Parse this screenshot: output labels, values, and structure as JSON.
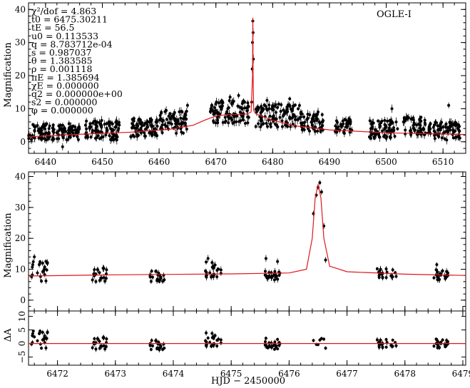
{
  "chart_data": [
    {
      "type": "scatter",
      "panel": "top",
      "title": "OGLE-I",
      "xlabel": "",
      "ylabel": "Magnification",
      "xlim": [
        6437,
        6514
      ],
      "ylim": [
        -3.5,
        42
      ],
      "xticks": [
        6440,
        6450,
        6460,
        6470,
        6480,
        6490,
        6500,
        6510
      ],
      "yticks": [
        0,
        10,
        20,
        30,
        40
      ],
      "grid": false,
      "params": [
        "χ²/dof = 4.863",
        "t0 = 6475.30211",
        "tE = 56.5",
        "u0 = 0.113533",
        "q = 8.783712e-04",
        "s = 0.987037",
        "θ = 1.383585",
        "ρ = 0.001118",
        "πE = 1.385694",
        "χE = 0.000000",
        "q2 = 0.000000e+00",
        "s2 = 0.000000",
        "φ = 0.000000"
      ],
      "model": {
        "name": "model",
        "x": [
          6437,
          6445,
          6455,
          6462,
          6466,
          6468,
          6470,
          6472,
          6474,
          6475.5,
          6476.2,
          6476.45,
          6476.5,
          6476.55,
          6476.65,
          6477,
          6478,
          6480,
          6484,
          6490,
          6500,
          6514
        ],
        "y": [
          1.5,
          2.2,
          2.9,
          3.8,
          5.0,
          6.5,
          7.8,
          8.2,
          8.3,
          8.4,
          9.0,
          20,
          37.5,
          20,
          9.5,
          8.5,
          7.8,
          6.5,
          4.8,
          3.6,
          2.7,
          2.2
        ]
      },
      "clusters": [
        {
          "x_start": 6437,
          "x_end": 6446,
          "y_min": 0.5,
          "y_max": 5.5
        },
        {
          "x_start": 6447,
          "x_end": 6453,
          "y_min": 0.5,
          "y_max": 6.5
        },
        {
          "x_start": 6455,
          "x_end": 6460,
          "y_min": 1.5,
          "y_max": 7.5
        },
        {
          "x_start": 6460,
          "x_end": 6465,
          "y_min": 2.5,
          "y_max": 9.5
        },
        {
          "x_start": 6469,
          "x_end": 6476,
          "y_min": 5.5,
          "y_max": 12.5
        },
        {
          "x_start": 6477,
          "x_end": 6485,
          "y_min": 4.5,
          "y_max": 11.5
        },
        {
          "x_start": 6485,
          "x_end": 6489,
          "y_min": 3.0,
          "y_max": 8.5
        },
        {
          "x_start": 6491,
          "x_end": 6494,
          "y_min": 2.5,
          "y_max": 7.0
        },
        {
          "x_start": 6497,
          "x_end": 6502,
          "y_min": 1.0,
          "y_max": 6.5
        },
        {
          "x_start": 6503,
          "x_end": 6507,
          "y_min": 2.0,
          "y_max": 7.5
        },
        {
          "x_start": 6507,
          "x_end": 6513,
          "y_min": 0.5,
          "y_max": 6.0
        }
      ],
      "outliers": {
        "x": [
          6476.3,
          6476.4,
          6476.45,
          6476.5,
          6476.55,
          6476.6,
          6443,
          6465,
          6472.5,
          6474,
          6479,
          6483,
          6488,
          6501,
          6511
        ],
        "y": [
          12,
          22,
          30,
          36.5,
          33,
          25,
          -1.5,
          11,
          13.5,
          14,
          12.5,
          13,
          9,
          10,
          11
        ]
      }
    },
    {
      "type": "scatter",
      "panel": "middle",
      "xlabel": "",
      "ylabel": "Magnification",
      "xlim": [
        6471.5,
        6479.05
      ],
      "ylim": [
        -3.5,
        41.5
      ],
      "yticks": [
        0,
        10,
        20,
        30,
        40
      ],
      "grid": false,
      "model": {
        "name": "model",
        "x": [
          6471.5,
          6473,
          6475,
          6476,
          6476.3,
          6476.4,
          6476.45,
          6476.5,
          6476.55,
          6476.6,
          6476.7,
          6477,
          6478,
          6479.05
        ],
        "y": [
          7.8,
          8.2,
          8.5,
          8.8,
          10,
          20,
          33,
          37.5,
          33,
          20,
          11,
          9.2,
          8.4,
          8.0
        ]
      },
      "clusters": [
        {
          "x_start": 6471.55,
          "x_end": 6471.85,
          "y_min": 6,
          "y_max": 13
        },
        {
          "x_start": 6472.6,
          "x_end": 6472.85,
          "y_min": 6,
          "y_max": 10.5
        },
        {
          "x_start": 6473.6,
          "x_end": 6473.85,
          "y_min": 6,
          "y_max": 9.5
        },
        {
          "x_start": 6474.55,
          "x_end": 6474.85,
          "y_min": 6.5,
          "y_max": 12.5
        },
        {
          "x_start": 6475.55,
          "x_end": 6475.85,
          "y_min": 6.5,
          "y_max": 9.5
        },
        {
          "x_start": 6477.5,
          "x_end": 6477.85,
          "y_min": 7,
          "y_max": 10.5
        },
        {
          "x_start": 6478.5,
          "x_end": 6478.75,
          "y_min": 6.5,
          "y_max": 10
        }
      ],
      "outliers": {
        "x": [
          6476.42,
          6476.47,
          6476.5,
          6476.53,
          6476.56,
          6476.6,
          6476.63,
          6471.6,
          6471.8,
          6474.6,
          6475.6,
          6475.8,
          6478.55
        ],
        "y": [
          28,
          34,
          36.5,
          38,
          35,
          24,
          13,
          14,
          12.5,
          13.5,
          13.5,
          12.5,
          11.5
        ]
      }
    },
    {
      "type": "scatter",
      "panel": "residual",
      "xlabel": "HJD − 2450000",
      "ylabel": "ΔA",
      "xlim": [
        6471.5,
        6479.05
      ],
      "ylim": [
        -8,
        12
      ],
      "xticks": [
        6472,
        6473,
        6474,
        6475,
        6476,
        6477,
        6478,
        6479
      ],
      "ytick_labels": [
        "−5",
        "0",
        "5",
        "10"
      ],
      "grid": false
    }
  ]
}
